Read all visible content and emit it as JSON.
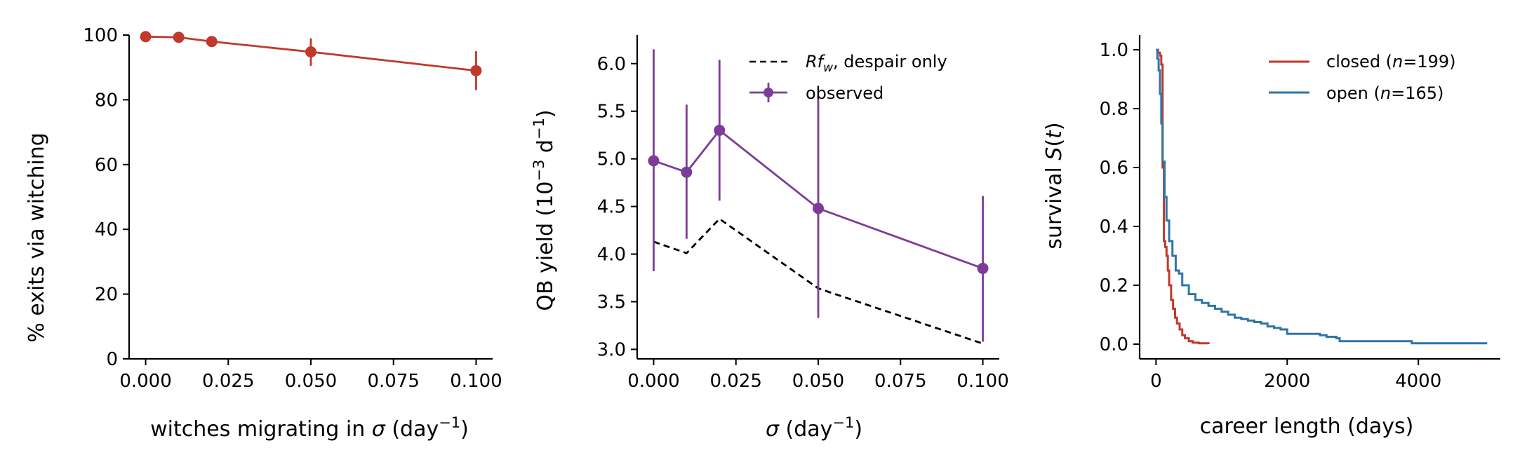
{
  "chart_data": [
    {
      "type": "line",
      "xlabel_pre": "witches migrating in ",
      "xlabel_sym": "σ",
      "xlabel_unit": " (day",
      "xlabel_sup": "−1",
      "xlabel_close": ")",
      "ylabel": "% exits via witching",
      "xlim": [
        -0.005,
        0.105
      ],
      "ylim": [
        0,
        100
      ],
      "xticks": [
        0.0,
        0.025,
        0.05,
        0.075,
        0.1
      ],
      "xtick_labels": [
        "0.000",
        "0.025",
        "0.050",
        "0.075",
        "0.100"
      ],
      "yticks": [
        0,
        20,
        40,
        60,
        80,
        100
      ],
      "ytick_labels": [
        "0",
        "20",
        "40",
        "60",
        "80",
        "100"
      ],
      "series": [
        {
          "color": "#c0392b",
          "x": [
            0.0,
            0.01,
            0.02,
            0.05,
            0.1
          ],
          "y": [
            99.5,
            99.3,
            98.0,
            94.8,
            89.0
          ],
          "yerr_low": [
            99.0,
            98.7,
            96.6,
            90.5,
            83.0
          ],
          "yerr_high": [
            100.0,
            99.9,
            99.3,
            99.0,
            95.0
          ]
        }
      ]
    },
    {
      "type": "line",
      "xlabel_sym": "σ",
      "xlabel_unit": " (day",
      "xlabel_sup": "−1",
      "xlabel_close": ")",
      "ylabel_pre": "QB yield (10",
      "ylabel_sup1": "−3",
      "ylabel_mid": " d",
      "ylabel_sup2": "−1",
      "ylabel_close": ")",
      "xlim": [
        -0.005,
        0.105
      ],
      "ylim": [
        2.9,
        6.3
      ],
      "xticks": [
        0.0,
        0.025,
        0.05,
        0.075,
        0.1
      ],
      "xtick_labels": [
        "0.000",
        "0.025",
        "0.050",
        "0.075",
        "0.100"
      ],
      "yticks": [
        3.0,
        3.5,
        4.0,
        4.5,
        5.0,
        5.5,
        6.0
      ],
      "ytick_labels": [
        "3.0",
        "3.5",
        "4.0",
        "4.5",
        "5.0",
        "5.5",
        "6.0"
      ],
      "legend_position": "top-right",
      "series": [
        {
          "name_sym": "Rf",
          "name_sub": "w",
          "name_rest": ", despair only",
          "color": "#000000",
          "dashed": true,
          "x": [
            0.0,
            0.01,
            0.02,
            0.05,
            0.1
          ],
          "y": [
            4.13,
            4.01,
            4.37,
            3.64,
            3.06
          ]
        },
        {
          "name": "observed",
          "color": "#7d3c98",
          "x": [
            0.0,
            0.01,
            0.02,
            0.05,
            0.1
          ],
          "y": [
            4.98,
            4.86,
            5.3,
            4.48,
            3.85
          ],
          "yerr_low": [
            3.82,
            4.16,
            4.56,
            3.33,
            3.08
          ],
          "yerr_high": [
            6.15,
            5.57,
            6.04,
            5.65,
            4.61
          ]
        }
      ]
    },
    {
      "type": "line",
      "xlabel": "career length (days)",
      "ylabel_pre": "survival ",
      "ylabel_sym": "S",
      "ylabel_mid": "(",
      "ylabel_sym2": "t",
      "ylabel_close": ")",
      "xlim": [
        -250,
        5250
      ],
      "ylim": [
        -0.05,
        1.05
      ],
      "xticks": [
        0,
        2000,
        4000
      ],
      "xtick_labels": [
        "0",
        "2000",
        "4000"
      ],
      "yticks": [
        0.0,
        0.2,
        0.4,
        0.6,
        0.8,
        1.0
      ],
      "ytick_labels": [
        "0.0",
        "0.2",
        "0.4",
        "0.6",
        "0.8",
        "1.0"
      ],
      "legend_position": "top-right",
      "series": [
        {
          "name_pre": "closed (",
          "name_sym": "n",
          "name_post": "=199)",
          "color": "#c0392b",
          "x": [
            0,
            30,
            60,
            80,
            100,
            120,
            140,
            160,
            180,
            200,
            230,
            260,
            290,
            320,
            360,
            400,
            440,
            500,
            560,
            650,
            800
          ],
          "y": [
            1.0,
            0.99,
            0.98,
            0.95,
            0.6,
            0.35,
            0.33,
            0.3,
            0.25,
            0.2,
            0.15,
            0.12,
            0.09,
            0.07,
            0.05,
            0.03,
            0.02,
            0.01,
            0.005,
            0.003,
            0.0
          ]
        },
        {
          "name_pre": "open (",
          "name_sym": "n",
          "name_post": "=165)",
          "color": "#2e75a8",
          "x": [
            0,
            20,
            40,
            60,
            80,
            100,
            130,
            160,
            200,
            250,
            300,
            350,
            400,
            500,
            600,
            700,
            800,
            900,
            1000,
            1100,
            1200,
            1300,
            1400,
            1500,
            1600,
            1700,
            1800,
            1900,
            2000,
            2300,
            2500,
            2600,
            2750,
            2800,
            3000,
            3500,
            3800,
            3900,
            4500,
            5050
          ],
          "y": [
            1.0,
            0.97,
            0.93,
            0.85,
            0.75,
            0.62,
            0.5,
            0.42,
            0.35,
            0.3,
            0.25,
            0.24,
            0.2,
            0.17,
            0.15,
            0.14,
            0.13,
            0.12,
            0.11,
            0.1,
            0.09,
            0.085,
            0.08,
            0.075,
            0.07,
            0.06,
            0.055,
            0.05,
            0.035,
            0.035,
            0.03,
            0.025,
            0.02,
            0.01,
            0.01,
            0.01,
            0.01,
            0.003,
            0.003,
            0.003
          ]
        }
      ]
    }
  ]
}
